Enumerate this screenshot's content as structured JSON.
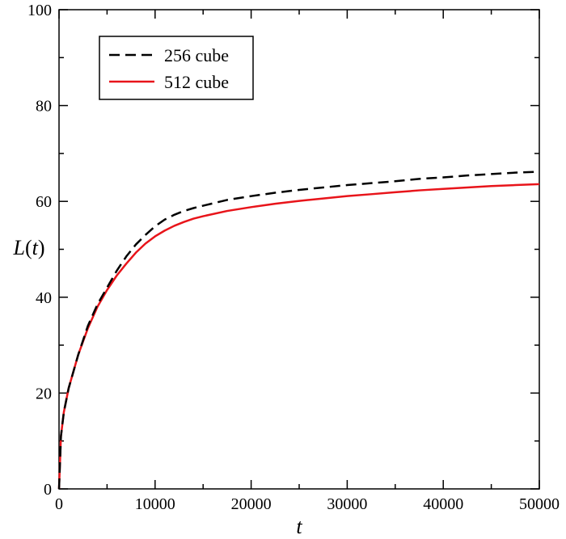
{
  "chart_data": {
    "type": "line",
    "title": "",
    "xlabel": "t",
    "ylabel": "L(t)",
    "xlim": [
      0,
      50000
    ],
    "ylim": [
      0,
      100
    ],
    "xticks": [
      0,
      10000,
      20000,
      30000,
      40000,
      50000
    ],
    "yticks": [
      0,
      20,
      40,
      60,
      80,
      100
    ],
    "xtick_labels": [
      "0",
      "10000",
      "20000",
      "30000",
      "40000",
      "50000"
    ],
    "ytick_labels": [
      "0",
      "20",
      "40",
      "60",
      "80",
      "100"
    ],
    "grid": false,
    "legend_position": "top-left",
    "x": [
      0,
      200,
      500,
      1000,
      2000,
      3000,
      4000,
      5000,
      6000,
      7000,
      8000,
      9000,
      10000,
      11000,
      12000,
      13000,
      14000,
      15000,
      17500,
      20000,
      22500,
      25000,
      27500,
      30000,
      32500,
      35000,
      37500,
      40000,
      42500,
      45000,
      47500,
      50000
    ],
    "series": [
      {
        "name": "256 cube",
        "color": "#000000",
        "style": "dashed",
        "values": [
          0,
          11,
          16,
          21,
          28,
          34,
          38.5,
          42,
          45.5,
          48.5,
          51,
          53,
          54.8,
          56.2,
          57.2,
          58,
          58.6,
          59.1,
          60.3,
          61.1,
          61.8,
          62.4,
          62.9,
          63.4,
          63.8,
          64.2,
          64.7,
          65,
          65.4,
          65.7,
          66,
          66.2
        ]
      },
      {
        "name": "512 cube",
        "color": "#e8141a",
        "style": "solid",
        "values": [
          0,
          11,
          16,
          21,
          28,
          33.5,
          38,
          41.5,
          44.5,
          47,
          49.3,
          51.2,
          52.7,
          53.9,
          54.9,
          55.7,
          56.4,
          56.9,
          58,
          58.8,
          59.5,
          60.1,
          60.6,
          61.1,
          61.5,
          61.9,
          62.3,
          62.6,
          62.9,
          63.2,
          63.4,
          63.6
        ]
      }
    ]
  }
}
